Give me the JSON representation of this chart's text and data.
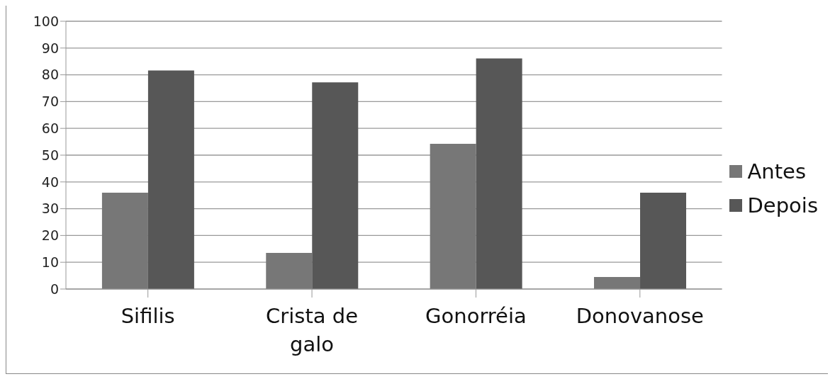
{
  "chart_data": {
    "type": "bar",
    "categories": [
      "Sifilis",
      "Crista de galo",
      "Gonorréia",
      "Donovanose"
    ],
    "series": [
      {
        "name": "Antes",
        "color": "#777777",
        "values": [
          36,
          13.5,
          54.2,
          4.5
        ]
      },
      {
        "name": "Depois",
        "color": "#575757",
        "values": [
          81.6,
          77.2,
          86.1,
          36
        ]
      }
    ],
    "ylim": [
      0,
      100
    ],
    "yticks": [
      0,
      10,
      20,
      30,
      40,
      50,
      60,
      70,
      80,
      90,
      100
    ],
    "grid": "y",
    "legend": "right"
  }
}
